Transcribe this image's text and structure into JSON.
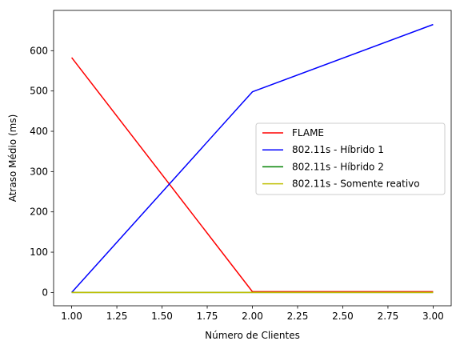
{
  "chart_data": {
    "type": "line",
    "title": "",
    "xlabel": "Número de Clientes",
    "ylabel": "Atraso Médio (ms)",
    "xlim": [
      0.9,
      3.1
    ],
    "ylim": [
      -33,
      700
    ],
    "x_ticks": [
      1.0,
      1.25,
      1.5,
      1.75,
      2.0,
      2.25,
      2.5,
      2.75,
      3.0
    ],
    "x_tick_labels": [
      "1.00",
      "1.25",
      "1.50",
      "1.75",
      "2.00",
      "2.25",
      "2.50",
      "2.75",
      "3.00"
    ],
    "y_ticks": [
      0,
      100,
      200,
      300,
      400,
      500,
      600
    ],
    "y_tick_labels": [
      "0",
      "100",
      "200",
      "300",
      "400",
      "500",
      "600"
    ],
    "grid": false,
    "legend_position": "center-right",
    "x": [
      1,
      2,
      3
    ],
    "series": [
      {
        "name": "FLAME",
        "color": "#ff0000",
        "values": [
          583,
          2,
          2
        ]
      },
      {
        "name": "802.11s - Híbrido 1",
        "color": "#0000ff",
        "values": [
          0,
          498,
          665
        ]
      },
      {
        "name": "802.11s - Híbrido 2",
        "color": "#008000",
        "values": [
          0,
          0,
          0
        ]
      },
      {
        "name": "802.11s - Somente reativo",
        "color": "#bfbf00",
        "values": [
          0,
          0,
          0
        ]
      }
    ]
  }
}
